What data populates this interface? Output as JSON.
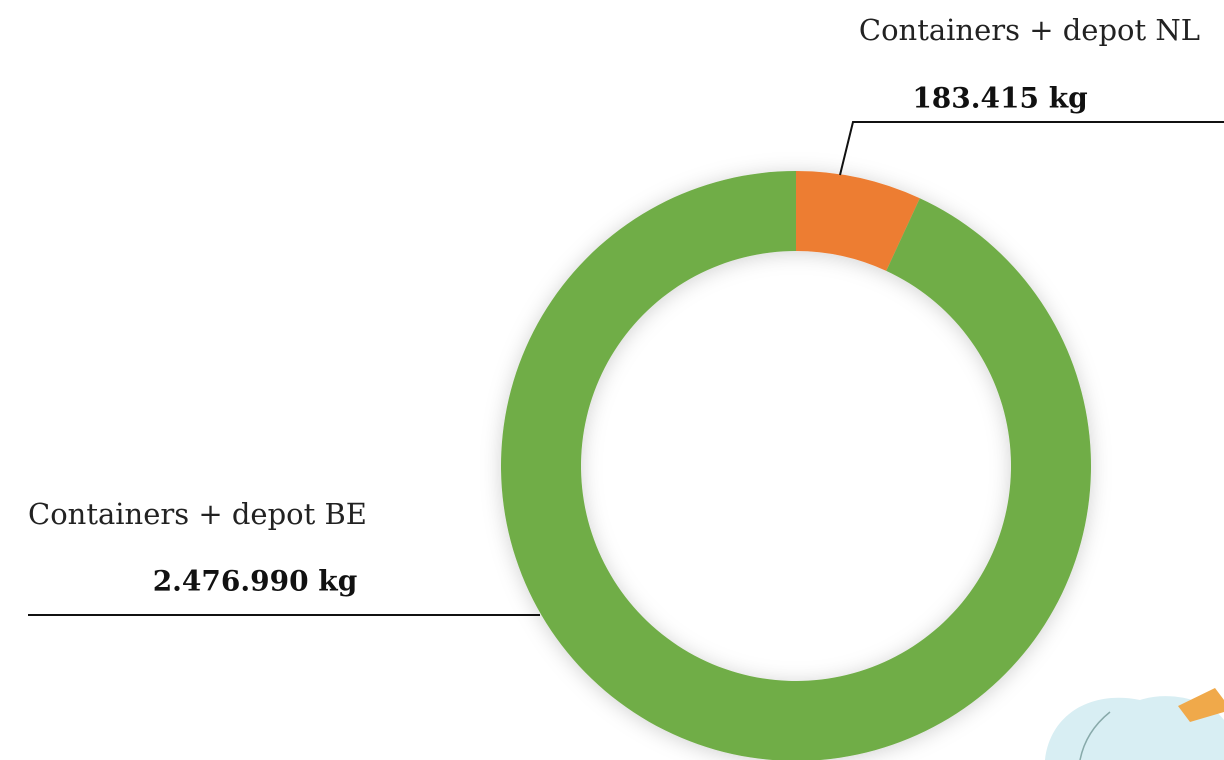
{
  "chart_data": {
    "type": "donut",
    "categories": [
      "Containers + depot NL",
      "Containers + depot BE"
    ],
    "values": [
      183415,
      2476990
    ],
    "value_labels": [
      "183.415 kg",
      "2.476.990 kg"
    ],
    "colors": [
      "#ed7d31",
      "#70ad47"
    ]
  }
}
